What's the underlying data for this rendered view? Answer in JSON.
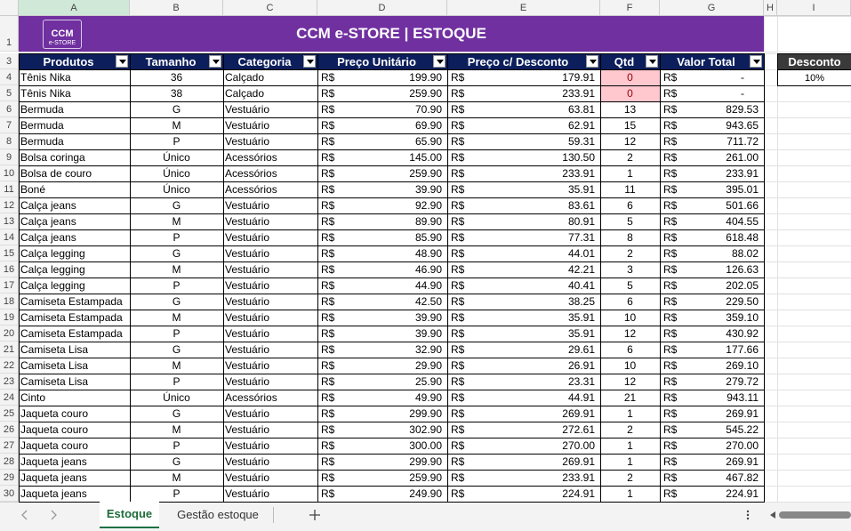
{
  "sheet": {
    "column_letters": [
      "A",
      "B",
      "C",
      "D",
      "E",
      "F",
      "G",
      "H",
      "I"
    ],
    "row_numbers": [
      1,
      3,
      4,
      5,
      6,
      7,
      8,
      9,
      10,
      11,
      12,
      13,
      14,
      15,
      16,
      17,
      18,
      19,
      20,
      21,
      22,
      23,
      24,
      25,
      26,
      27,
      28,
      29,
      30
    ],
    "logo": {
      "line1": "CCM",
      "line2": "e-STORE"
    },
    "title": "CCM e-STORE | ESTOQUE",
    "table": {
      "headers": [
        "Produtos",
        "Tamanho",
        "Categoria",
        "Preço Unitário",
        "Preço c/ Desconto",
        "Qtd",
        "Valor Total"
      ],
      "currency": "R$",
      "rows": [
        [
          "Tênis Nika",
          "36",
          "Calçado",
          "199.90",
          "179.91",
          "0",
          "-"
        ],
        [
          "Tênis Nika",
          "38",
          "Calçado",
          "259.90",
          "233.91",
          "0",
          "-"
        ],
        [
          "Bermuda",
          "G",
          "Vestuário",
          "70.90",
          "63.81",
          "13",
          "829.53"
        ],
        [
          "Bermuda",
          "M",
          "Vestuário",
          "69.90",
          "62.91",
          "15",
          "943.65"
        ],
        [
          "Bermuda",
          "P",
          "Vestuário",
          "65.90",
          "59.31",
          "12",
          "711.72"
        ],
        [
          "Bolsa coringa",
          "Único",
          "Acessórios",
          "145.00",
          "130.50",
          "2",
          "261.00"
        ],
        [
          "Bolsa de couro",
          "Único",
          "Acessórios",
          "259.90",
          "233.91",
          "1",
          "233.91"
        ],
        [
          "Boné",
          "Único",
          "Acessórios",
          "39.90",
          "35.91",
          "11",
          "395.01"
        ],
        [
          "Calça jeans",
          "G",
          "Vestuário",
          "92.90",
          "83.61",
          "6",
          "501.66"
        ],
        [
          "Calça jeans",
          "M",
          "Vestuário",
          "89.90",
          "80.91",
          "5",
          "404.55"
        ],
        [
          "Calça jeans",
          "P",
          "Vestuário",
          "85.90",
          "77.31",
          "8",
          "618.48"
        ],
        [
          "Calça legging",
          "G",
          "Vestuário",
          "48.90",
          "44.01",
          "2",
          "88.02"
        ],
        [
          "Calça legging",
          "M",
          "Vestuário",
          "46.90",
          "42.21",
          "3",
          "126.63"
        ],
        [
          "Calça legging",
          "P",
          "Vestuário",
          "44.90",
          "40.41",
          "5",
          "202.05"
        ],
        [
          "Camiseta Estampada",
          "G",
          "Vestuário",
          "42.50",
          "38.25",
          "6",
          "229.50"
        ],
        [
          "Camiseta Estampada",
          "M",
          "Vestuário",
          "39.90",
          "35.91",
          "10",
          "359.10"
        ],
        [
          "Camiseta Estampada",
          "P",
          "Vestuário",
          "39.90",
          "35.91",
          "12",
          "430.92"
        ],
        [
          "Camiseta Lisa",
          "G",
          "Vestuário",
          "32.90",
          "29.61",
          "6",
          "177.66"
        ],
        [
          "Camiseta Lisa",
          "M",
          "Vestuário",
          "29.90",
          "26.91",
          "10",
          "269.10"
        ],
        [
          "Camiseta Lisa",
          "P",
          "Vestuário",
          "25.90",
          "23.31",
          "12",
          "279.72"
        ],
        [
          "Cinto",
          "Único",
          "Acessórios",
          "49.90",
          "44.91",
          "21",
          "943.11"
        ],
        [
          "Jaqueta couro",
          "G",
          "Vestuário",
          "299.90",
          "269.91",
          "1",
          "269.91"
        ],
        [
          "Jaqueta couro",
          "M",
          "Vestuário",
          "302.90",
          "272.61",
          "2",
          "545.22"
        ],
        [
          "Jaqueta couro",
          "P",
          "Vestuário",
          "300.00",
          "270.00",
          "1",
          "270.00"
        ],
        [
          "Jaqueta jeans",
          "G",
          "Vestuário",
          "299.90",
          "269.91",
          "1",
          "269.91"
        ],
        [
          "Jaqueta jeans",
          "M",
          "Vestuário",
          "259.90",
          "233.91",
          "2",
          "467.82"
        ],
        [
          "Jaqueta jeans",
          "P",
          "Vestuário",
          "249.90",
          "224.91",
          "1",
          "224.91"
        ]
      ]
    },
    "discount": {
      "label": "Desconto",
      "value": "10%"
    }
  },
  "tabs": [
    "Estoque",
    "Gestão estoque"
  ]
}
